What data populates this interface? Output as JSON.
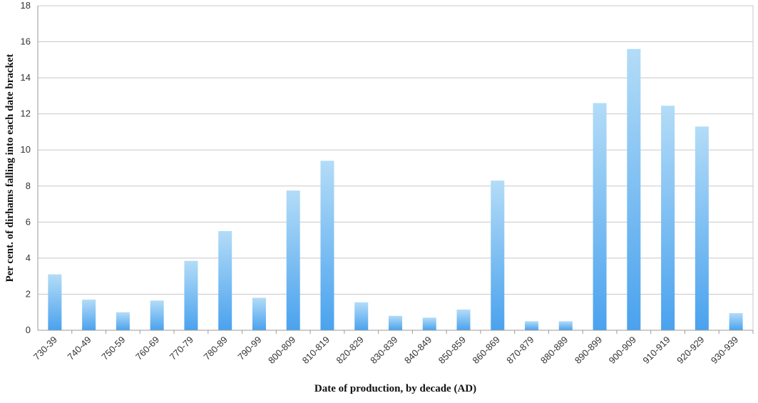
{
  "chart_data": {
    "type": "bar",
    "title": "",
    "xlabel": "Date of production, by decade (AD)",
    "ylabel": "Per cent. of dirhams falling into each date bracket",
    "ylim": [
      0,
      18
    ],
    "yticks": [
      0,
      2,
      4,
      6,
      8,
      10,
      12,
      14,
      16,
      18
    ],
    "grid": true,
    "legend": "none",
    "bar_color_top": "#b3dcf7",
    "bar_color_bottom": "#4aa2ee",
    "categories": [
      "730-39",
      "740-49",
      "750-59",
      "760-69",
      "770-79",
      "780-89",
      "790-99",
      "800-809",
      "810-819",
      "820-829",
      "830-839",
      "840-849",
      "850-859",
      "860-869",
      "870-879",
      "880-889",
      "890-899",
      "900-909",
      "910-919",
      "920-929",
      "930-939"
    ],
    "values": [
      3.1,
      1.7,
      1.0,
      1.65,
      3.85,
      5.5,
      1.8,
      7.75,
      9.4,
      1.55,
      0.8,
      0.7,
      1.15,
      8.3,
      0.5,
      0.5,
      12.6,
      15.6,
      12.45,
      11.3,
      0.95
    ]
  }
}
